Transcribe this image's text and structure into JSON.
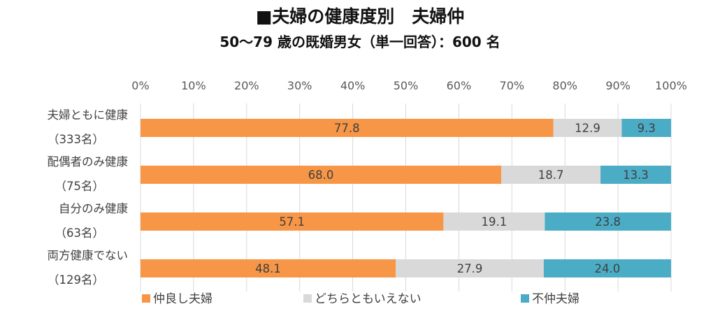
{
  "chart_data": {
    "type": "bar",
    "orientation": "horizontal",
    "stacked": true,
    "title": "■夫婦の健康度別　夫婦仲",
    "subtitle": "50〜79 歳の既婚男女（単一回答）：600 名",
    "categories": [
      [
        "夫婦ともに健康",
        "（333名）"
      ],
      [
        "配偶者のみ健康",
        "（75名）"
      ],
      [
        "自分のみ健康",
        "（63名）"
      ],
      [
        "両方健康でない",
        "（129名）"
      ]
    ],
    "series": [
      {
        "name": "仲良し夫婦",
        "color": "#f79646",
        "values": [
          77.8,
          68.0,
          57.1,
          48.1
        ],
        "labels": [
          "77.8",
          "68.0",
          "57.1",
          "48.1"
        ]
      },
      {
        "name": "どちらともいえない",
        "color": "#d9d9d9",
        "values": [
          12.9,
          18.7,
          19.1,
          27.9
        ],
        "labels": [
          "12.9",
          "18.7",
          "19.1",
          "27.9"
        ]
      },
      {
        "name": "不仲夫婦",
        "color": "#4bacc6",
        "values": [
          9.3,
          13.3,
          23.8,
          24.0
        ],
        "labels": [
          "9.3",
          "13.3",
          "23.8",
          "24.0"
        ]
      }
    ],
    "xlim": [
      0,
      100
    ],
    "xticks": [
      "0%",
      "10%",
      "20%",
      "30%",
      "40%",
      "50%",
      "60%",
      "70%",
      "80%",
      "90%",
      "100%"
    ],
    "grid": true,
    "legend_position": "bottom"
  }
}
